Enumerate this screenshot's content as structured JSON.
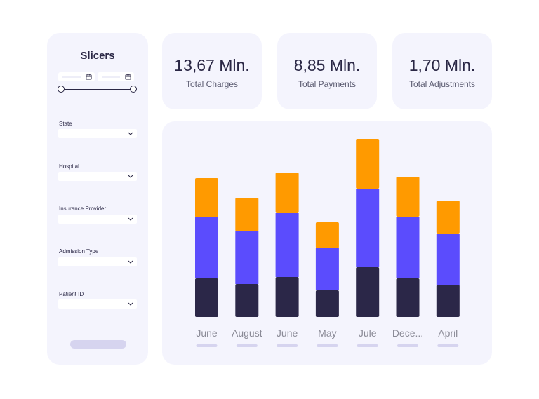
{
  "slicers": {
    "title": "Slicers",
    "filters": [
      {
        "label": "State"
      },
      {
        "label": "Hospital"
      },
      {
        "label": "Insurance Provider"
      },
      {
        "label": "Admission Type"
      },
      {
        "label": "Patient ID"
      }
    ]
  },
  "kpis": [
    {
      "value": "13,67 Mln.",
      "label": "Total Charges"
    },
    {
      "value": "8,85 Mln.",
      "label": "Total Payments"
    },
    {
      "value": "1,70 Mln.",
      "label": "Total Adjustments"
    }
  ],
  "colors": {
    "dark": "#2b2748",
    "purple": "#5b4cfd",
    "orange": "#ff9a00",
    "panel": "#f4f4fd"
  },
  "chart_data": {
    "type": "bar",
    "stacked": true,
    "categories": [
      "June",
      "August",
      "June",
      "May",
      "Jule",
      "Dece...",
      "April"
    ],
    "series": [
      {
        "name": "dark",
        "values": [
          55,
          47,
          57,
          38,
          71,
          55,
          46
        ]
      },
      {
        "name": "purple",
        "values": [
          87,
          75,
          91,
          60,
          112,
          88,
          73
        ]
      },
      {
        "name": "orange",
        "values": [
          56,
          48,
          58,
          37,
          71,
          57,
          47
        ]
      }
    ],
    "ylim": [
      0,
      260
    ]
  }
}
